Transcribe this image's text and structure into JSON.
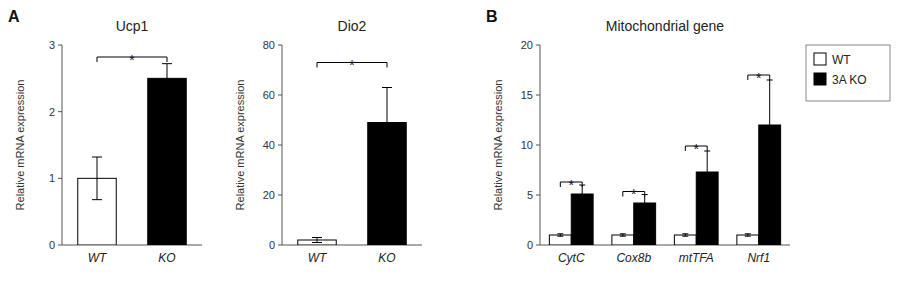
{
  "chart_data": [
    {
      "type": "bar",
      "panel_label": "A",
      "title": "Ucp1",
      "categories": [
        "WT",
        "KO"
      ],
      "values": [
        1.0,
        2.5
      ],
      "errors": [
        0.32,
        0.22
      ],
      "colors": [
        "white",
        "black"
      ],
      "ylim": [
        0,
        3
      ],
      "yticks": [
        0,
        1,
        2,
        3
      ],
      "ylabel": "Relative mRNA expression",
      "annotations": [
        {
          "text": "*",
          "from": "WT",
          "to": "KO",
          "y": 2.82
        }
      ]
    },
    {
      "type": "bar",
      "title": "Dio2",
      "categories": [
        "WT",
        "KO"
      ],
      "values": [
        2.0,
        49.0
      ],
      "errors": [
        1.0,
        14.0
      ],
      "colors": [
        "white",
        "black"
      ],
      "ylim": [
        0,
        80
      ],
      "yticks": [
        0,
        20,
        40,
        60,
        80
      ],
      "ylabel": "Relative mRNA expression",
      "annotations": [
        {
          "text": "*",
          "from": "WT",
          "to": "KO",
          "y": 73
        }
      ]
    },
    {
      "type": "bar",
      "panel_label": "B",
      "title": "Mitochondrial gene",
      "categories": [
        "CytC",
        "Cox8b",
        "mtTFA",
        "Nrf1"
      ],
      "series": [
        {
          "name": "WT",
          "color": "white",
          "values": [
            1.0,
            1.0,
            1.0,
            1.0
          ],
          "errors": [
            0.12,
            0.12,
            0.12,
            0.12
          ]
        },
        {
          "name": "3A KO",
          "color": "black",
          "values": [
            5.1,
            4.2,
            7.3,
            12.0
          ],
          "errors": [
            0.9,
            0.85,
            2.1,
            4.5
          ]
        }
      ],
      "ylim": [
        0,
        20
      ],
      "yticks": [
        0,
        5,
        10,
        15,
        20
      ],
      "ylabel": "Relative mRNA expression",
      "legend": "right",
      "annotations": [
        {
          "text": "*",
          "category": "CytC",
          "y": 6.3
        },
        {
          "text": "*",
          "category": "Cox8b",
          "y": 5.35
        },
        {
          "text": "*",
          "category": "mtTFA",
          "y": 9.9
        },
        {
          "text": "*",
          "category": "Nrf1",
          "y": 17.0
        }
      ]
    }
  ]
}
